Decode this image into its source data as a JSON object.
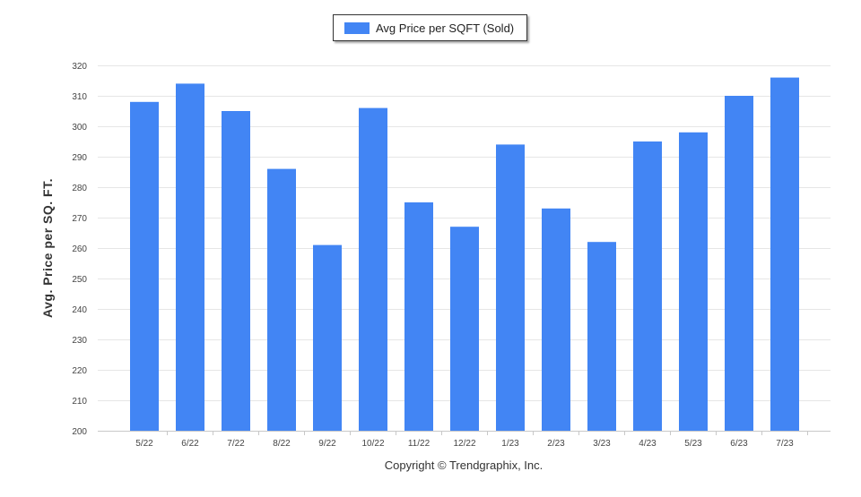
{
  "chart_data": {
    "type": "bar",
    "categories": [
      "5/22",
      "6/22",
      "7/22",
      "8/22",
      "9/22",
      "10/22",
      "11/22",
      "12/22",
      "1/23",
      "2/23",
      "3/23",
      "4/23",
      "5/23",
      "6/23",
      "7/23"
    ],
    "series": [
      {
        "name": "Avg Price per SQFT (Sold)",
        "color": "#4285f4",
        "values": [
          308,
          314,
          305,
          286,
          261,
          306,
          275,
          267,
          294,
          273,
          262,
          295,
          298,
          310,
          316
        ]
      }
    ],
    "ylabel": "Avg. Price per SQ. FT.",
    "ylim": [
      200,
      320
    ],
    "yticks": [
      200,
      210,
      220,
      230,
      240,
      250,
      260,
      270,
      280,
      290,
      300,
      310,
      320
    ],
    "grid": true,
    "legend_position": "top-center",
    "footer": "Copyright © Trendgraphix, Inc."
  }
}
